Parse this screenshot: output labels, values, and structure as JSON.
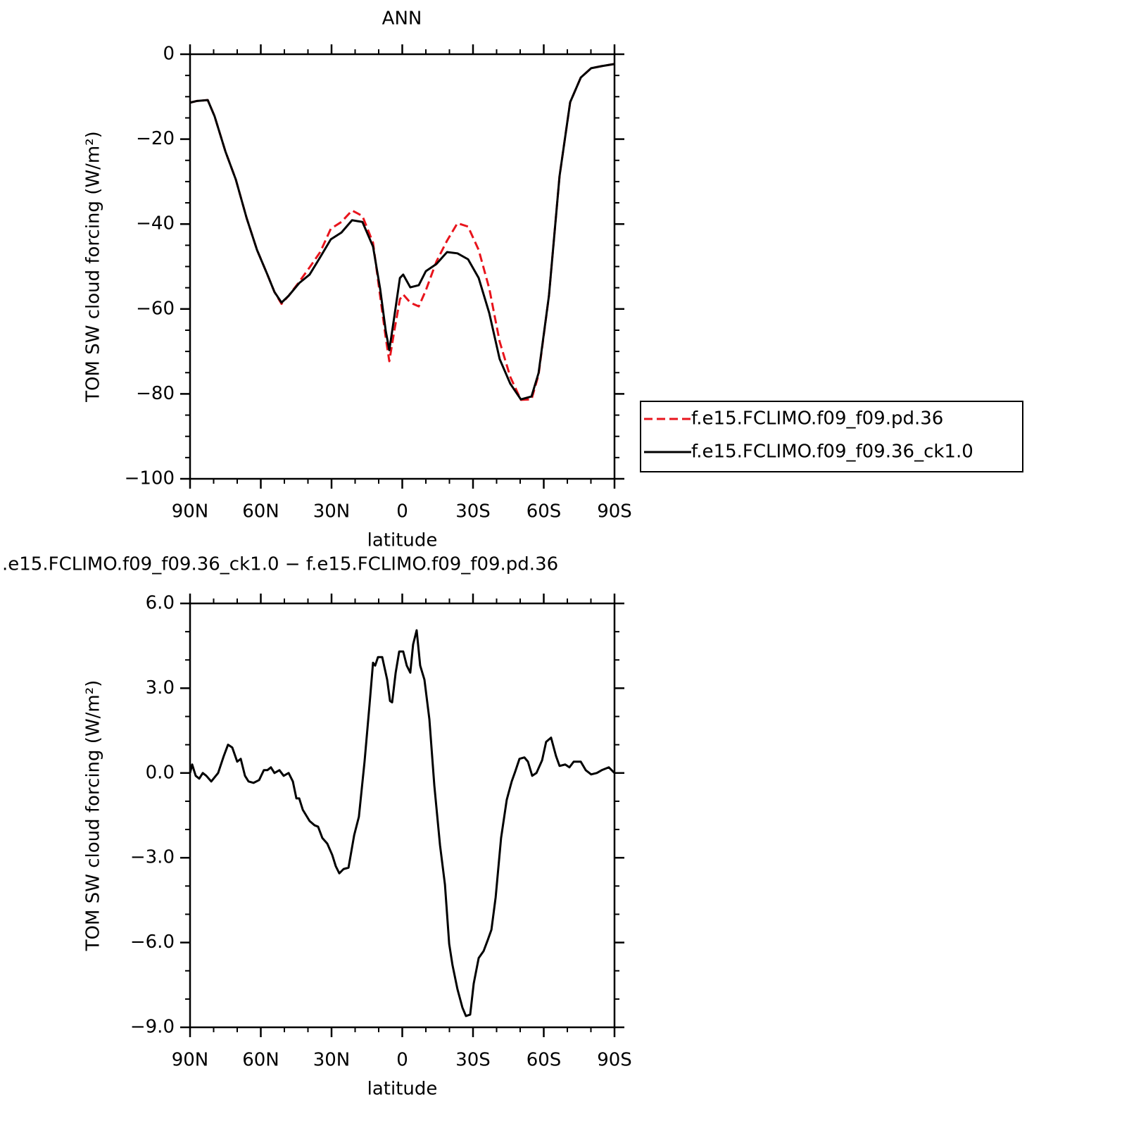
{
  "chart_data": [
    {
      "type": "line",
      "title": "ANN",
      "xlabel": "latitude",
      "ylabel": "TOM SW cloud forcing (W/m²)",
      "xlim": [
        90,
        -90
      ],
      "xticks": [
        {
          "value": 90,
          "label": "90N"
        },
        {
          "value": 60,
          "label": "60N"
        },
        {
          "value": 30,
          "label": "30N"
        },
        0,
        {
          "value": -30,
          "label": "30S"
        },
        {
          "value": -60,
          "label": "60S"
        },
        {
          "value": -90,
          "label": "90S"
        }
      ],
      "xminor_divisions": 3,
      "ylim": [
        -100,
        0
      ],
      "yticks": [
        {
          "value": -100,
          "label": "−100"
        },
        {
          "value": -80,
          "label": "−80"
        },
        {
          "value": -60,
          "label": "−60"
        },
        {
          "value": -40,
          "label": "−40"
        },
        {
          "value": -20,
          "label": "−20"
        },
        0
      ],
      "yminor_divisions": 4,
      "legend": "right",
      "x": [
        90,
        87,
        82.5,
        79.6,
        75,
        70.6,
        66,
        61.6,
        57.2,
        54.2,
        51.2,
        48.2,
        43.7,
        39.3,
        34.8,
        30.3,
        25.8,
        21.3,
        16.9,
        12.4,
        9.4,
        7,
        5.5,
        3.4,
        1,
        -0.4,
        -3.4,
        -7,
        -10,
        -14.5,
        -19,
        -23.4,
        -27.9,
        -32.4,
        -36.9,
        -41.3,
        -45.8,
        -50.3,
        -54.8,
        -57.8,
        -62.2,
        -66.7,
        -71.2,
        -75.7,
        -80.1,
        -84.6,
        -90
      ],
      "series": [
        {
          "name": "f.e15.FCLIMO.f09_f09.pd.36",
          "color": "#e8141c",
          "style": "dashed",
          "values": [
            -11.4,
            -11,
            -10.8,
            -14.6,
            -22.9,
            -29.5,
            -38.6,
            -46.1,
            -51.9,
            -56,
            -58.8,
            -56.9,
            -53.6,
            -50.2,
            -46.6,
            -41.1,
            -39.5,
            -36.8,
            -38.1,
            -44.4,
            -56.9,
            -66.8,
            -72.3,
            -65.2,
            -57.7,
            -56.6,
            -58.5,
            -59.4,
            -55.6,
            -48.8,
            -43.9,
            -39.8,
            -40.6,
            -46.1,
            -55.2,
            -67.7,
            -76,
            -81.4,
            -81.3,
            -75.5,
            -56.9,
            -28.7,
            -11.3,
            -5.5,
            -3.3,
            -2.8,
            -2.3
          ]
        },
        {
          "name": "f.e15.FCLIMO.f09_f09.36_ck1.0",
          "color": "#000000",
          "style": "solid",
          "values": [
            -11.4,
            -11,
            -10.8,
            -14.6,
            -22.9,
            -29.5,
            -38.6,
            -46.1,
            -51.9,
            -56,
            -58.5,
            -56.9,
            -53.9,
            -51.9,
            -47.8,
            -43.6,
            -42,
            -39.1,
            -39.5,
            -45.3,
            -55.2,
            -65.2,
            -69.7,
            -61.9,
            -52.7,
            -51.9,
            -54.9,
            -54.4,
            -51.1,
            -49.4,
            -46.6,
            -46.9,
            -48.3,
            -52.7,
            -61,
            -71.8,
            -77.6,
            -81.3,
            -80.6,
            -75.1,
            -56.9,
            -28.7,
            -11.3,
            -5.5,
            -3.3,
            -2.8,
            -2.3
          ]
        }
      ]
    },
    {
      "type": "line",
      "title": ".e15.FCLIMO.f09_f09.36_ck1.0 − f.e15.FCLIMO.f09_f09.pd.36",
      "xlabel": "latitude",
      "ylabel": "TOM SW cloud forcing (W/m²)",
      "xlim": [
        90,
        -90
      ],
      "xticks": [
        {
          "value": 90,
          "label": "90N"
        },
        {
          "value": 60,
          "label": "60N"
        },
        {
          "value": 30,
          "label": "30N"
        },
        0,
        {
          "value": -30,
          "label": "30S"
        },
        {
          "value": -60,
          "label": "60S"
        },
        {
          "value": -90,
          "label": "90S"
        }
      ],
      "xminor_divisions": 3,
      "ylim": [
        -9,
        6
      ],
      "yticks": [
        {
          "value": -9,
          "label": "−9.0"
        },
        {
          "value": -6,
          "label": "−6.0"
        },
        {
          "value": -3,
          "label": "−3.0"
        },
        {
          "value": 0,
          "label": "0.0"
        },
        {
          "value": 3,
          "label": "3.0"
        },
        {
          "value": 6,
          "label": "6.0"
        }
      ],
      "yminor_divisions": 3,
      "x": [
        90,
        89.1,
        87.6,
        86.1,
        84.6,
        83.1,
        81.0,
        78.1,
        75.7,
        73.9,
        72.1,
        70.0,
        68.5,
        66.7,
        65.2,
        63.1,
        60.7,
        58.7,
        57.2,
        55.7,
        54.2,
        52.1,
        50.3,
        48.2,
        46.4,
        44.9,
        43.7,
        42.2,
        39.3,
        37.2,
        35.7,
        33.9,
        31.8,
        29.7,
        28.2,
        26.7,
        24.9,
        22.8,
        20.4,
        18.4,
        16.0,
        13.9,
        12.4,
        11.5,
        10.3,
        8.5,
        6.4,
        5.2,
        4.3,
        2.8,
        1.3,
        -0.4,
        -1.9,
        -3.4,
        -4.6,
        -6.1,
        -7.6,
        -9.4,
        -11.5,
        -13.6,
        -16.0,
        -18.1,
        -19.9,
        -21.3,
        -23.4,
        -25.5,
        -27.0,
        -28.8,
        -30.3,
        -32.4,
        -34.5,
        -36.3,
        -37.8,
        -39.6,
        -41.9,
        -44.3,
        -46.4,
        -47.9,
        -49.7,
        -51.8,
        -53.3,
        -55.1,
        -56.9,
        -59.3,
        -61.0,
        -63.1,
        -65.2,
        -66.7,
        -69.1,
        -70.9,
        -72.7,
        -75.7,
        -77.8,
        -80.1,
        -82.5,
        -84.6,
        -87.6,
        -90
      ],
      "series": [
        {
          "color": "#000000",
          "style": "solid",
          "values": [
            0.0,
            0.3,
            -0.1,
            -0.2,
            0.0,
            -0.1,
            -0.3,
            0.0,
            0.6,
            1.0,
            0.9,
            0.4,
            0.5,
            -0.1,
            -0.3,
            -0.35,
            -0.25,
            0.1,
            0.1,
            0.2,
            0.0,
            0.1,
            -0.1,
            0.0,
            -0.3,
            -0.9,
            -0.9,
            -1.3,
            -1.7,
            -1.85,
            -1.9,
            -2.3,
            -2.5,
            -2.9,
            -3.3,
            -3.55,
            -3.4,
            -3.35,
            -2.2,
            -1.55,
            0.4,
            2.4,
            3.9,
            3.8,
            4.1,
            4.1,
            3.3,
            2.55,
            2.5,
            3.55,
            4.3,
            4.3,
            3.8,
            3.55,
            4.55,
            5.05,
            3.8,
            3.3,
            1.9,
            -0.45,
            -2.55,
            -3.95,
            -6.05,
            -6.8,
            -7.65,
            -8.3,
            -8.6,
            -8.55,
            -7.45,
            -6.55,
            -6.3,
            -5.9,
            -5.55,
            -4.4,
            -2.3,
            -0.95,
            -0.3,
            0.05,
            0.5,
            0.55,
            0.4,
            -0.1,
            0.0,
            0.45,
            1.1,
            1.25,
            0.6,
            0.25,
            0.3,
            0.2,
            0.4,
            0.4,
            0.1,
            -0.05,
            0.0,
            0.1,
            0.2,
            0.0
          ]
        }
      ]
    }
  ]
}
